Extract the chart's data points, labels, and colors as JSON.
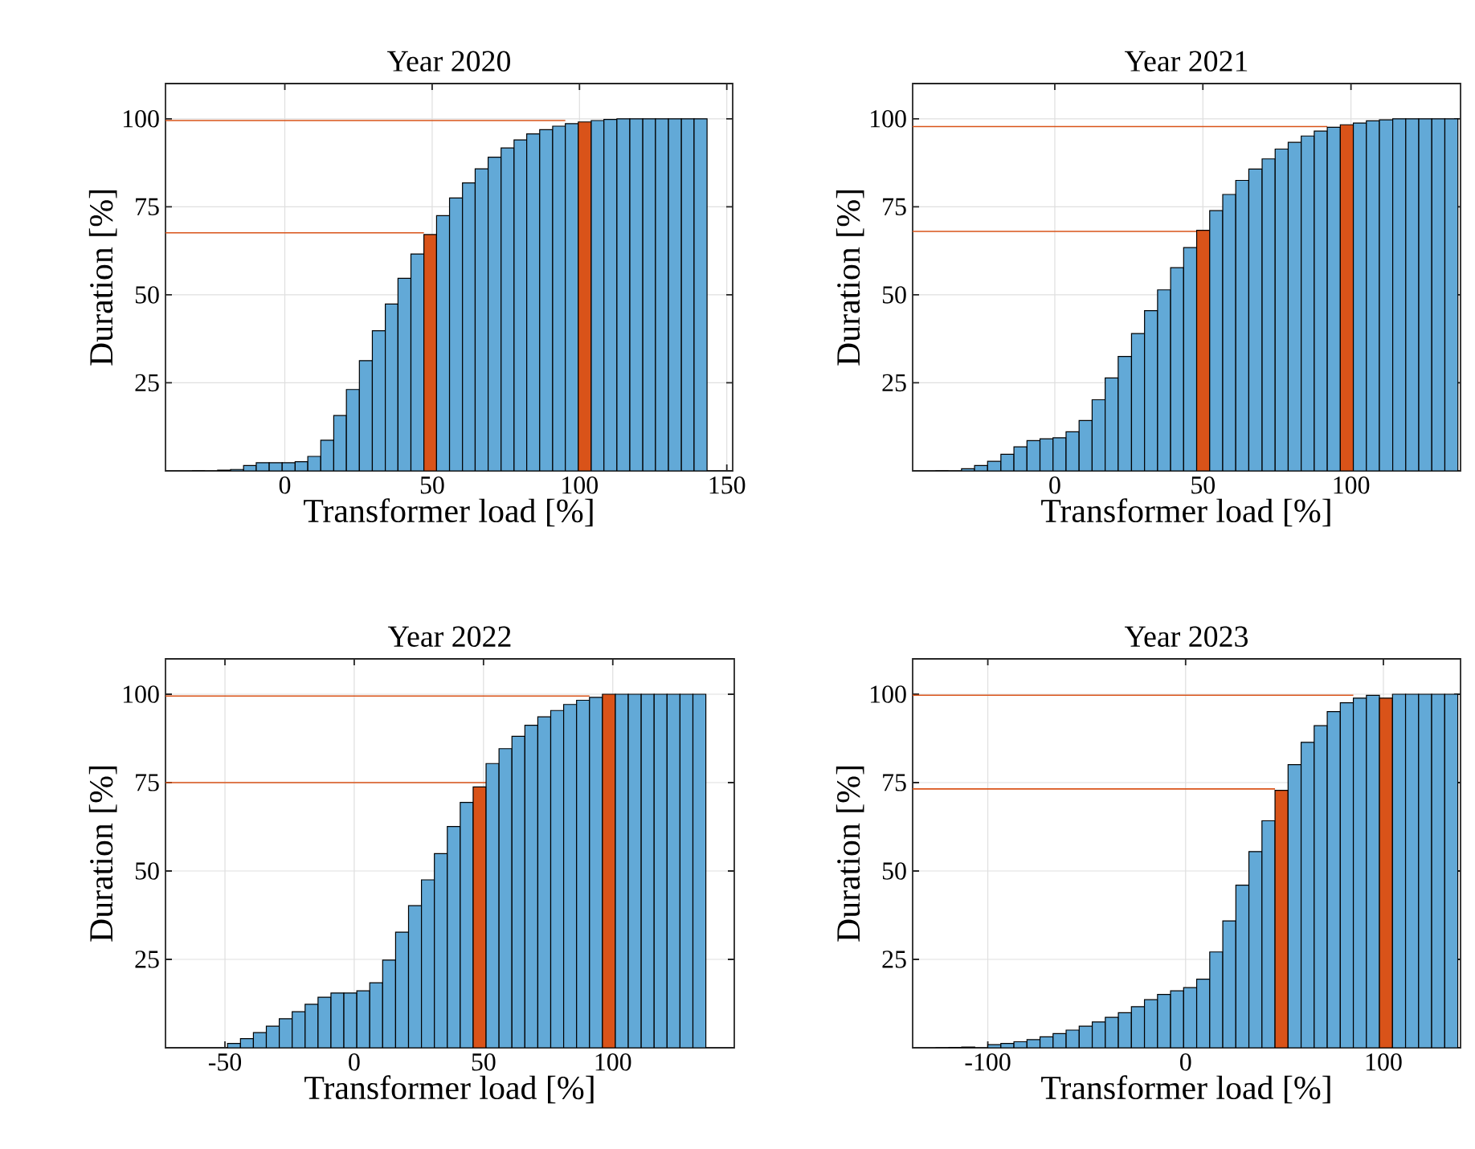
{
  "chart_data": [
    {
      "type": "histogram",
      "title": "Year 2020",
      "xlabel": "Transformer load [%]",
      "ylabel": "Duration [%]",
      "bins": [
        -31.5,
        -27.1,
        -22.8,
        -18.4,
        -14.0,
        -9.7,
        -5.3,
        -0.9,
        3.5,
        7.8,
        12.2,
        16.6,
        20.9,
        25.3,
        29.7,
        34.1,
        38.4,
        42.8,
        47.2,
        51.5,
        55.9,
        60.3,
        64.6,
        69.0,
        73.4,
        77.8,
        82.1,
        86.5,
        90.9,
        95.2,
        99.6,
        104.0,
        108.3,
        112.7,
        117.1,
        121.5,
        125.8,
        130.2,
        134.6,
        138.9,
        143.3
      ],
      "values": [
        0,
        null,
        0.2,
        0.4,
        1.5,
        2.3,
        2.3,
        2.3,
        2.6,
        4.1,
        8.7,
        15.7,
        23.1,
        31.3,
        39.8,
        47.4,
        54.7,
        61.6,
        67.1,
        72.5,
        77.5,
        81.8,
        85.8,
        89.1,
        91.7,
        94.0,
        95.7,
        96.9,
        97.9,
        98.6,
        99.1,
        99.5,
        99.8,
        100,
        100,
        100,
        100,
        100,
        100,
        100
      ],
      "colors": [
        "#62a9d7",
        "#62a9d7",
        "#62a9d7",
        "#62a9d7",
        "#62a9d7",
        "#62a9d7",
        "#62a9d7",
        "#62a9d7",
        "#62a9d7",
        "#62a9d7",
        "#62a9d7",
        "#62a9d7",
        "#62a9d7",
        "#62a9d7",
        "#62a9d7",
        "#62a9d7",
        "#62a9d7",
        "#62a9d7",
        "#d95319",
        "#62a9d7",
        "#62a9d7",
        "#62a9d7",
        "#62a9d7",
        "#62a9d7",
        "#62a9d7",
        "#62a9d7",
        "#62a9d7",
        "#62a9d7",
        "#62a9d7",
        "#62a9d7",
        "#d95319",
        "#62a9d7",
        "#62a9d7",
        "#62a9d7",
        "#62a9d7",
        "#62a9d7",
        "#62a9d7",
        "#62a9d7",
        "#62a9d7",
        "#62a9d7"
      ],
      "xlim": [
        -40.5,
        152
      ],
      "ylim": [
        0,
        110
      ],
      "xticks": [
        0,
        50,
        100,
        150
      ],
      "yticks": [
        25,
        50,
        75,
        100
      ],
      "grid": true,
      "ref_lines": [
        {
          "axis": "y",
          "value": 67.6,
          "color": "#d95319"
        },
        {
          "axis": "y",
          "value": 99.5,
          "color": "#d95319"
        }
      ]
    },
    {
      "type": "histogram",
      "title": "Year 2021",
      "xlabel": "Transformer load [%]",
      "ylabel": "Duration [%]",
      "bins": [
        -40.3,
        -35.9,
        -31.5,
        -27.1,
        -22.7,
        -18.2,
        -13.8,
        -9.4,
        -5.0,
        -0.6,
        3.8,
        8.2,
        12.6,
        17.0,
        21.4,
        25.9,
        30.3,
        34.7,
        39.1,
        43.5,
        47.9,
        52.3,
        56.7,
        61.1,
        65.5,
        70.0,
        74.4,
        78.8,
        83.2,
        87.6,
        92.0,
        96.4,
        100.8,
        105.2,
        109.6,
        114.1,
        118.5,
        122.9,
        127.3,
        131.7,
        136.1
      ],
      "values": [
        0,
        null,
        0.6,
        1.5,
        2.7,
        4.7,
        6.8,
        8.6,
        9.1,
        9.4,
        11.1,
        14.3,
        20.2,
        26.4,
        32.5,
        39.0,
        45.5,
        51.4,
        57.7,
        63.4,
        68.3,
        73.9,
        78.5,
        82.5,
        85.7,
        88.6,
        91.4,
        93.3,
        95.1,
        96.5,
        97.6,
        98.3,
        98.8,
        99.4,
        99.7,
        100,
        100,
        100,
        100,
        100
      ],
      "colors": [
        "#62a9d7",
        "#62a9d7",
        "#62a9d7",
        "#62a9d7",
        "#62a9d7",
        "#62a9d7",
        "#62a9d7",
        "#62a9d7",
        "#62a9d7",
        "#62a9d7",
        "#62a9d7",
        "#62a9d7",
        "#62a9d7",
        "#62a9d7",
        "#62a9d7",
        "#62a9d7",
        "#62a9d7",
        "#62a9d7",
        "#62a9d7",
        "#62a9d7",
        "#d95319",
        "#62a9d7",
        "#62a9d7",
        "#62a9d7",
        "#62a9d7",
        "#62a9d7",
        "#62a9d7",
        "#62a9d7",
        "#62a9d7",
        "#62a9d7",
        "#62a9d7",
        "#d95319",
        "#62a9d7",
        "#62a9d7",
        "#62a9d7",
        "#62a9d7",
        "#62a9d7",
        "#62a9d7",
        "#62a9d7",
        "#62a9d7"
      ],
      "xlim": [
        -48,
        137
      ],
      "ylim": [
        0,
        110
      ],
      "xticks": [
        0,
        50,
        100
      ],
      "yticks": [
        25,
        50,
        75,
        100
      ],
      "grid": true,
      "ref_lines": [
        {
          "axis": "y",
          "value": 68.0,
          "color": "#d95319"
        },
        {
          "axis": "y",
          "value": 97.8,
          "color": "#d95319"
        }
      ]
    },
    {
      "type": "histogram",
      "title": "Year 2022",
      "xlabel": "Transformer load [%]",
      "ylabel": "Duration [%]",
      "bins": [
        -54,
        -49,
        -44,
        -39,
        -34,
        -29,
        -24,
        -19,
        -14,
        -9,
        -4,
        1,
        6,
        11,
        16,
        21,
        26,
        31,
        36,
        41,
        46,
        51,
        56,
        61,
        66,
        71,
        76,
        81,
        86,
        91,
        96,
        101,
        106,
        111,
        116,
        121,
        126,
        131,
        136
      ],
      "values": [
        null,
        1.2,
        2.6,
        4.3,
        6.1,
        8.2,
        10.2,
        12.3,
        14.3,
        15.5,
        15.5,
        16.1,
        18.4,
        24.8,
        32.7,
        40.2,
        47.5,
        54.9,
        62.6,
        69.4,
        73.8,
        80.4,
        84.6,
        88.1,
        91.2,
        93.6,
        95.4,
        97.1,
        98.3,
        99.1,
        100,
        100,
        100,
        100,
        100,
        100,
        100,
        100
      ],
      "colors": [
        "#62a9d7",
        "#62a9d7",
        "#62a9d7",
        "#62a9d7",
        "#62a9d7",
        "#62a9d7",
        "#62a9d7",
        "#62a9d7",
        "#62a9d7",
        "#62a9d7",
        "#62a9d7",
        "#62a9d7",
        "#62a9d7",
        "#62a9d7",
        "#62a9d7",
        "#62a9d7",
        "#62a9d7",
        "#62a9d7",
        "#62a9d7",
        "#62a9d7",
        "#d95319",
        "#62a9d7",
        "#62a9d7",
        "#62a9d7",
        "#62a9d7",
        "#62a9d7",
        "#62a9d7",
        "#62a9d7",
        "#62a9d7",
        "#62a9d7",
        "#d95319",
        "#62a9d7",
        "#62a9d7",
        "#62a9d7",
        "#62a9d7",
        "#62a9d7",
        "#62a9d7",
        "#62a9d7"
      ],
      "xlim": [
        -73,
        147
      ],
      "ylim": [
        0,
        110
      ],
      "xticks": [
        -50,
        0,
        50,
        100
      ],
      "yticks": [
        25,
        50,
        75,
        100
      ],
      "grid": true,
      "ref_lines": [
        {
          "axis": "y",
          "value": 75.0,
          "color": "#d95319"
        },
        {
          "axis": "y",
          "value": 99.5,
          "color": "#d95319"
        }
      ]
    },
    {
      "type": "histogram",
      "title": "Year 2023",
      "xlabel": "Transformer load [%]",
      "ylabel": "Duration [%]",
      "bins": [
        -126.4,
        -119.8,
        -113.2,
        -106.6,
        -100.0,
        -93.4,
        -86.8,
        -80.2,
        -73.6,
        -67.0,
        -60.4,
        -53.8,
        -47.2,
        -40.6,
        -34.0,
        -27.4,
        -20.8,
        -14.2,
        -7.6,
        -1.0,
        5.6,
        12.2,
        18.8,
        25.4,
        32.0,
        38.6,
        45.2,
        51.8,
        58.4,
        65.0,
        71.6,
        78.2,
        84.8,
        91.4,
        98.0,
        104.6,
        111.2,
        117.8,
        124.4,
        131.0,
        137.6
      ],
      "values": [
        0,
        0.1,
        0.2,
        null,
        0.9,
        1.2,
        1.7,
        2.3,
        3.1,
        4.0,
        5.0,
        6.1,
        7.3,
        8.6,
        9.9,
        11.6,
        13.6,
        15.1,
        16.1,
        17.0,
        19.4,
        27.1,
        35.9,
        46.0,
        55.5,
        64.2,
        72.8,
        80.1,
        86.4,
        91.1,
        95.1,
        97.6,
        98.9,
        99.7,
        98.9,
        100,
        100,
        100,
        100,
        100
      ],
      "colors": [
        "#62a9d7",
        "#62a9d7",
        "#62a9d7",
        "#62a9d7",
        "#62a9d7",
        "#62a9d7",
        "#62a9d7",
        "#62a9d7",
        "#62a9d7",
        "#62a9d7",
        "#62a9d7",
        "#62a9d7",
        "#62a9d7",
        "#62a9d7",
        "#62a9d7",
        "#62a9d7",
        "#62a9d7",
        "#62a9d7",
        "#62a9d7",
        "#62a9d7",
        "#62a9d7",
        "#62a9d7",
        "#62a9d7",
        "#62a9d7",
        "#62a9d7",
        "#62a9d7",
        "#d95319",
        "#62a9d7",
        "#62a9d7",
        "#62a9d7",
        "#62a9d7",
        "#62a9d7",
        "#62a9d7",
        "#62a9d7",
        "#d95319",
        "#62a9d7",
        "#62a9d7",
        "#62a9d7",
        "#62a9d7",
        "#62a9d7"
      ],
      "xlim": [
        -138,
        139
      ],
      "ylim": [
        0,
        110
      ],
      "xticks": [
        -100,
        0,
        100
      ],
      "yticks": [
        25,
        50,
        75,
        100
      ],
      "grid": true,
      "ref_lines": [
        {
          "axis": "y",
          "value": 73.2,
          "color": "#d95319"
        },
        {
          "axis": "y",
          "value": 99.7,
          "color": "#d95319"
        }
      ]
    }
  ]
}
